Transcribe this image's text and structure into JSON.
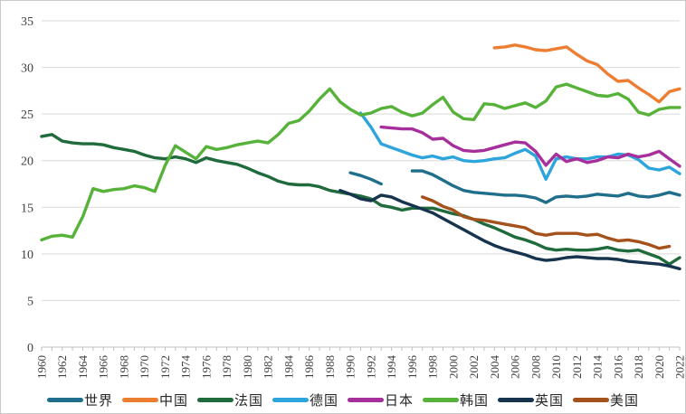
{
  "chart_data": {
    "type": "line",
    "title": "",
    "xlabel": "",
    "ylabel": "",
    "xlim": [
      1960,
      2022
    ],
    "ylim": [
      0,
      35
    ],
    "yticks": [
      0,
      5,
      10,
      15,
      20,
      25,
      30,
      35
    ],
    "xtick_start": 1960,
    "xtick_end": 2022,
    "xtick_step": 2,
    "grid": "horizontal",
    "legend_position": "bottom",
    "series": [
      {
        "name": "世界",
        "name_en": "world",
        "color": "#1F6E8C",
        "start": 1990,
        "values": [
          18.7,
          18.4,
          18.0,
          17.5,
          null,
          null,
          18.9,
          18.9,
          18.5,
          17.9,
          17.3,
          16.8,
          16.6,
          16.5,
          16.4,
          16.3,
          16.3,
          16.2,
          16.0,
          15.5,
          16.1,
          16.2,
          16.1,
          16.2,
          16.4,
          16.3,
          16.2,
          16.5,
          16.2,
          16.1,
          16.3,
          16.6,
          16.3
        ]
      },
      {
        "name": "中国",
        "name_en": "china",
        "color": "#ED7D31",
        "start": 2004,
        "values": [
          32.1,
          32.2,
          32.4,
          32.2,
          31.9,
          31.8,
          32.0,
          32.2,
          31.4,
          30.7,
          30.3,
          29.3,
          28.5,
          28.6,
          27.8,
          27.1,
          26.3,
          27.4,
          27.7
        ]
      },
      {
        "name": "法国",
        "name_en": "france",
        "color": "#1F6B3B",
        "start": 1960,
        "values": [
          22.6,
          22.8,
          22.1,
          21.9,
          21.8,
          21.8,
          21.7,
          21.4,
          21.2,
          21.0,
          20.6,
          20.3,
          20.2,
          20.4,
          20.2,
          19.8,
          20.3,
          20.0,
          19.8,
          19.6,
          19.2,
          18.7,
          18.3,
          17.8,
          17.5,
          17.4,
          17.4,
          17.2,
          16.8,
          16.6,
          16.4,
          16.2,
          15.9,
          15.2,
          15.0,
          14.7,
          14.9,
          14.9,
          14.9,
          14.6,
          14.3,
          14.1,
          13.7,
          13.2,
          12.8,
          12.3,
          11.8,
          11.5,
          11.1,
          10.6,
          10.4,
          10.5,
          10.4,
          10.4,
          10.5,
          10.7,
          10.4,
          10.3,
          10.4,
          10.0,
          9.6,
          8.9,
          9.6
        ]
      },
      {
        "name": "德国",
        "name_en": "germany",
        "color": "#2DA4DC",
        "start": 1991,
        "values": [
          25.1,
          23.6,
          21.8,
          21.4,
          21.0,
          20.6,
          20.3,
          20.5,
          20.2,
          20.4,
          20.0,
          19.9,
          20.0,
          20.2,
          20.3,
          20.8,
          21.2,
          20.5,
          18.0,
          20.2,
          20.4,
          20.2,
          20.2,
          20.4,
          20.4,
          20.7,
          20.6,
          20.1,
          19.2,
          19.0,
          19.3,
          18.6
        ]
      },
      {
        "name": "日本",
        "name_en": "japan",
        "color": "#A62F9C",
        "start": 1993,
        "values": [
          23.6,
          23.5,
          23.4,
          23.4,
          23.0,
          22.3,
          22.4,
          21.6,
          21.1,
          21.0,
          21.1,
          21.4,
          21.7,
          22.0,
          21.9,
          21.0,
          19.5,
          20.7,
          19.9,
          20.2,
          19.8,
          20.0,
          20.4,
          20.3,
          20.7,
          20.4,
          20.6,
          21.0,
          20.2,
          19.4
        ]
      },
      {
        "name": "韩国",
        "name_en": "korea",
        "color": "#56B239",
        "start": 1960,
        "values": [
          11.5,
          11.9,
          12.0,
          11.8,
          14.0,
          17.0,
          16.7,
          16.9,
          17.0,
          17.3,
          17.1,
          16.7,
          19.5,
          21.6,
          20.9,
          20.2,
          21.5,
          21.2,
          21.4,
          21.7,
          21.9,
          22.1,
          21.9,
          22.8,
          24.0,
          24.3,
          25.3,
          26.6,
          27.7,
          26.3,
          25.5,
          24.9,
          25.1,
          25.6,
          25.8,
          25.2,
          24.8,
          25.1,
          26.0,
          26.8,
          25.2,
          24.5,
          24.4,
          26.1,
          26.0,
          25.6,
          25.9,
          26.2,
          25.7,
          26.4,
          27.9,
          28.2,
          27.8,
          27.4,
          27.0,
          26.9,
          27.2,
          26.6,
          25.2,
          24.9,
          25.5,
          25.7,
          25.7
        ]
      },
      {
        "name": "英国",
        "name_en": "uk",
        "color": "#16344E",
        "start": 1989,
        "values": [
          16.8,
          16.4,
          15.9,
          15.7,
          16.3,
          16.1,
          15.6,
          15.2,
          14.8,
          14.4,
          13.8,
          13.2,
          12.6,
          12.0,
          11.4,
          10.9,
          10.5,
          10.2,
          9.9,
          9.5,
          9.3,
          9.4,
          9.6,
          9.7,
          9.6,
          9.5,
          9.5,
          9.4,
          9.2,
          9.1,
          9.0,
          8.9,
          8.7,
          8.4
        ]
      },
      {
        "name": "美国",
        "name_en": "usa",
        "color": "#A5511C",
        "start": 1997,
        "values": [
          16.1,
          15.7,
          15.1,
          14.7,
          14.0,
          13.7,
          13.6,
          13.4,
          13.2,
          13.0,
          12.8,
          12.2,
          12.0,
          12.2,
          12.2,
          12.2,
          12.0,
          12.1,
          11.7,
          11.4,
          11.5,
          11.3,
          11.0,
          10.6,
          10.8
        ]
      }
    ]
  },
  "layout_colors": {
    "gridline": "#d9d9d9",
    "axis": "#bfbfbf",
    "tick_label": "#404040",
    "background": "#ffffff",
    "border": "#c9c9c9"
  }
}
